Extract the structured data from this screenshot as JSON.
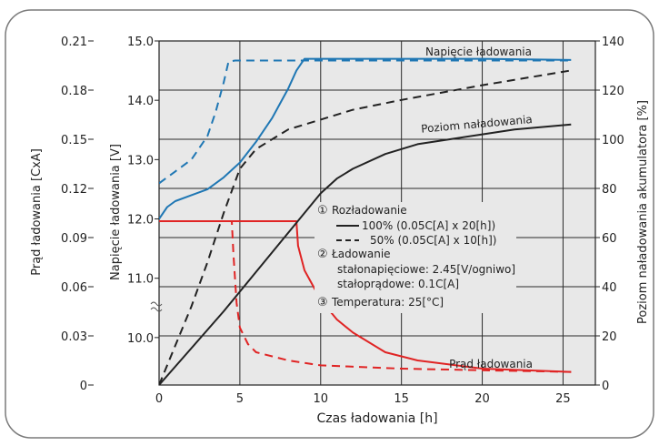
{
  "chart_data": {
    "type": "line",
    "title": "",
    "xlabel": "Czas ładowania [h]",
    "x_ticks": [
      0,
      5,
      10,
      15,
      20,
      25
    ],
    "xlim": [
      0,
      27
    ],
    "axes": {
      "left_outer": {
        "label": "Prąd ładowania [CxA]",
        "ticks": [
          "0.21",
          "0.18",
          "0.15",
          "0.12",
          "0.09",
          "0.06",
          "0.03",
          "0"
        ]
      },
      "left_inner": {
        "label": "Napięcie ładowania [V]",
        "ticks": [
          "15.0",
          "14.0",
          "13.0",
          "12.0",
          "11.0",
          "10.0"
        ],
        "ylim": [
          10,
          15
        ]
      },
      "right": {
        "label": "Poziom naładowania akumulatora [%]",
        "ticks": [
          "140",
          "120",
          "100",
          "80",
          "60",
          "40",
          "20",
          "0"
        ],
        "ylim": [
          0,
          140
        ]
      }
    },
    "grid": true,
    "annotations": {
      "voltage": "Napięcie ładowania",
      "soc": "Poziom naładowania",
      "current": "Prąd ładowania"
    },
    "legend": {
      "n1": "①",
      "discharge_title": "Rozładowanie",
      "d100": "100% (0.05C[A] x 20[h])",
      "d50": "50% (0.05C[A] x 10[h])",
      "n2": "②",
      "charge_title": "Ładowanie",
      "cv": "stałonapięciowe: 2.45[V/ogniwo]",
      "cc": "stałoprądowe: 0.1C[A]",
      "n3": "③",
      "temp": "Temperatura: 25[°C]"
    },
    "series": [
      {
        "quantity": "voltage",
        "axis": "left_inner",
        "units": "V",
        "color": "#1f77b4",
        "dash": "solid",
        "discharge": "100%",
        "x": [
          0,
          0.5,
          1,
          2,
          3,
          4,
          5,
          6,
          7,
          7.5,
          8,
          8.5,
          9,
          10,
          15,
          20,
          25.5
        ],
        "y": [
          12.0,
          12.2,
          12.3,
          12.4,
          12.5,
          12.7,
          12.95,
          13.3,
          13.7,
          13.95,
          14.2,
          14.5,
          14.7,
          14.7,
          14.7,
          14.7,
          14.68
        ]
      },
      {
        "quantity": "voltage",
        "axis": "left_inner",
        "units": "V",
        "color": "#1f77b4",
        "dash": "dashed",
        "discharge": "50%",
        "x": [
          0,
          0.5,
          1,
          2,
          3,
          3.5,
          4,
          4.3,
          4.7,
          5,
          10,
          15,
          20,
          25.5
        ],
        "y": [
          12.6,
          12.7,
          12.8,
          13.0,
          13.4,
          13.8,
          14.3,
          14.65,
          14.67,
          14.67,
          14.67,
          14.67,
          14.67,
          14.67
        ]
      },
      {
        "quantity": "current",
        "axis": "left_outer",
        "units": "CxA",
        "color": "#e02424",
        "dash": "solid",
        "discharge": "100%",
        "x": [
          0,
          8.5,
          8.6,
          9,
          10,
          11,
          12,
          14,
          16,
          20,
          25.5
        ],
        "y": [
          0.1,
          0.1,
          0.085,
          0.07,
          0.052,
          0.04,
          0.032,
          0.02,
          0.015,
          0.01,
          0.008
        ]
      },
      {
        "quantity": "current",
        "axis": "left_outer",
        "units": "CxA",
        "color": "#e02424",
        "dash": "dashed",
        "discharge": "50%",
        "x": [
          0,
          4.5,
          4.6,
          4.8,
          5,
          5.5,
          6,
          8,
          10,
          15,
          20,
          25.5
        ],
        "y": [
          0.1,
          0.1,
          0.08,
          0.05,
          0.035,
          0.025,
          0.02,
          0.015,
          0.012,
          0.01,
          0.009,
          0.008
        ]
      },
      {
        "quantity": "soc",
        "axis": "right",
        "units": "%",
        "color": "#222222",
        "dash": "solid",
        "discharge": "100%",
        "x": [
          0,
          2,
          4,
          6,
          8,
          10,
          11,
          12,
          14,
          16,
          18,
          20,
          22,
          25.5
        ],
        "y": [
          0,
          15,
          30,
          46,
          62,
          78,
          84,
          88,
          94,
          98,
          100,
          102,
          104,
          106
        ]
      },
      {
        "quantity": "soc",
        "axis": "right",
        "units": "%",
        "color": "#222222",
        "dash": "dashed",
        "discharge": "50%",
        "x": [
          0,
          1,
          2,
          3,
          4,
          5,
          6,
          7,
          8,
          10,
          12,
          15,
          20,
          25.5
        ],
        "y": [
          0,
          16,
          32,
          50,
          70,
          88,
          96,
          100,
          104,
          108,
          112,
          116,
          122,
          128
        ]
      }
    ]
  }
}
